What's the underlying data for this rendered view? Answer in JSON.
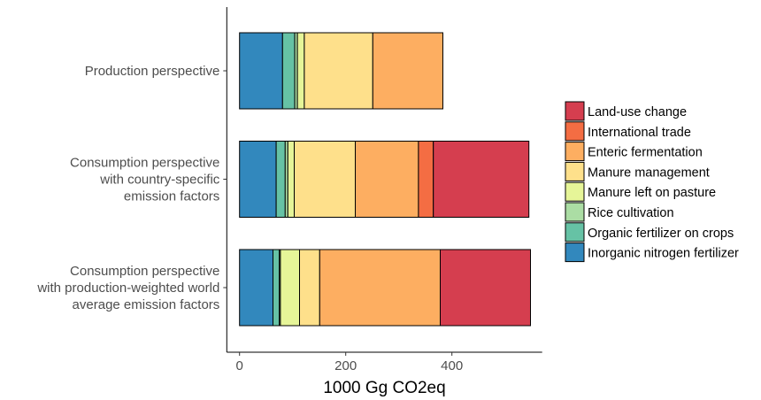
{
  "chart_data": {
    "type": "bar",
    "orientation": "horizontal",
    "stacked": true,
    "xlabel": "1000 Gg CO2eq",
    "ylabel": "",
    "xlim": [
      -24,
      570
    ],
    "xticks": [
      0,
      200,
      400
    ],
    "grid": false,
    "legend_position": "right",
    "categories": [
      [
        "Production perspective"
      ],
      [
        "Consumption perspective",
        "with country-specific",
        "emission factors"
      ],
      [
        "Consumption perspective",
        "with production-weighted world",
        "average emission factors"
      ]
    ],
    "series": [
      {
        "name": "Inorganic nitrogen fertilizer",
        "color": "#3288bd",
        "values": [
          81,
          69,
          63
        ]
      },
      {
        "name": "Organic fertilizer on crops",
        "color": "#66c2a5",
        "values": [
          23,
          17,
          12
        ]
      },
      {
        "name": "Rice cultivation",
        "color": "#abdda4",
        "values": [
          5,
          5,
          2
        ]
      },
      {
        "name": "Manure left on pasture",
        "color": "#e6f598",
        "values": [
          13,
          12,
          36
        ]
      },
      {
        "name": "Manure management",
        "color": "#fee08b",
        "values": [
          129,
          115,
          38
        ]
      },
      {
        "name": "Enteric fermentation",
        "color": "#fdae61",
        "values": [
          132,
          119,
          227
        ]
      },
      {
        "name": "International trade",
        "color": "#f46d43",
        "values": [
          0,
          28,
          0
        ]
      },
      {
        "name": "Land-use change",
        "color": "#d53e4f",
        "values": [
          0,
          180,
          170
        ]
      }
    ]
  }
}
